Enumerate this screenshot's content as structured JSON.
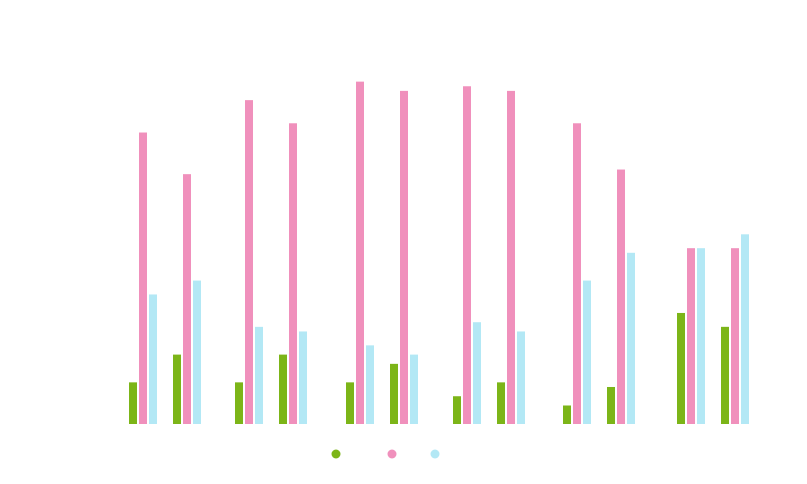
{
  "chart_data": {
    "type": "bar",
    "title": "",
    "xlabel": "",
    "ylabel": "",
    "categories": [
      "",
      "",
      "",
      "",
      "",
      "",
      "",
      "",
      "",
      "",
      "",
      ""
    ],
    "ylim": [
      0,
      75
    ],
    "grid": false,
    "legend": "bottom-center",
    "series": [
      {
        "color": "#7cb518",
        "values": [
          9,
          15,
          9,
          15,
          9,
          13,
          6,
          9,
          4,
          8,
          24,
          21
        ]
      },
      {
        "color": "#f090bc",
        "values": [
          63,
          54,
          70,
          65,
          74,
          72,
          73,
          72,
          65,
          55,
          38,
          38
        ]
      },
      {
        "color": "#b3e8f5",
        "values": [
          28,
          31,
          21,
          20,
          17,
          15,
          22,
          20,
          31,
          37,
          38,
          41
        ]
      }
    ]
  }
}
